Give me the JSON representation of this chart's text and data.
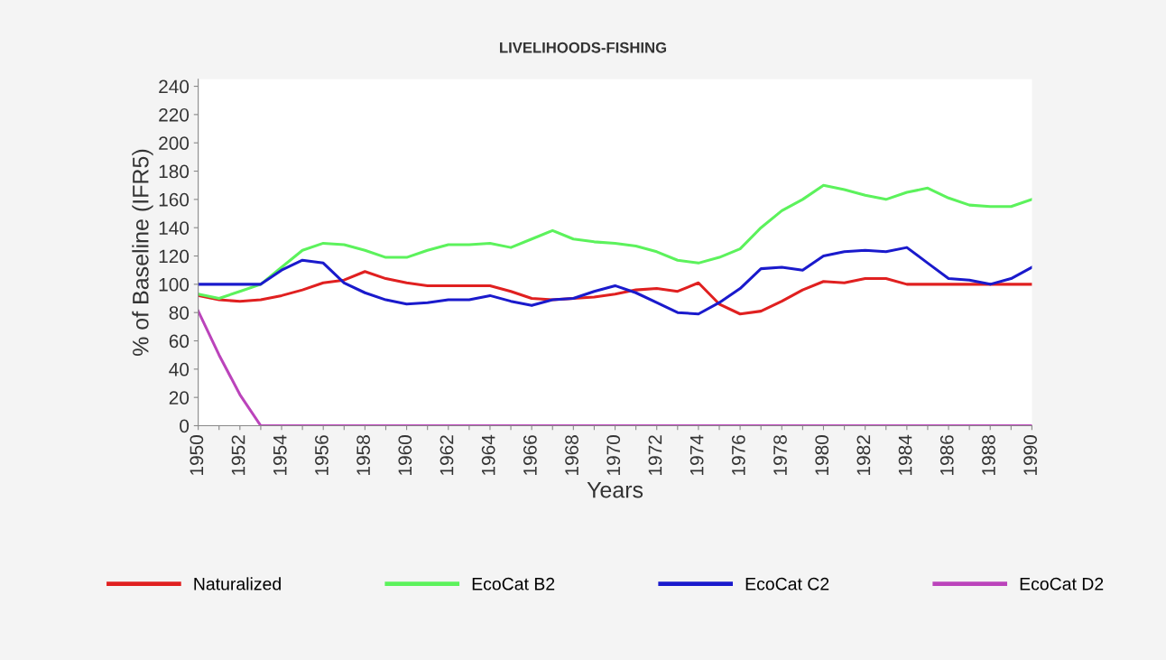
{
  "chart_data": {
    "type": "line",
    "title": "LIVELIHOODS-FISHING",
    "xlabel": "Years",
    "ylabel": "% of Baseline (IFR5)",
    "x": [
      1950,
      1951,
      1952,
      1953,
      1954,
      1955,
      1956,
      1957,
      1958,
      1959,
      1960,
      1961,
      1962,
      1963,
      1964,
      1965,
      1966,
      1967,
      1968,
      1969,
      1970,
      1971,
      1972,
      1973,
      1974,
      1975,
      1976,
      1977,
      1978,
      1979,
      1980,
      1981,
      1982,
      1983,
      1984,
      1985,
      1986,
      1987,
      1988,
      1989,
      1990
    ],
    "series": [
      {
        "name": "Naturalized",
        "color": "#e02020",
        "values": [
          92,
          89,
          88,
          89,
          92,
          96,
          101,
          103,
          109,
          104,
          101,
          99,
          99,
          99,
          99,
          95,
          90,
          89,
          90,
          91,
          93,
          96,
          97,
          95,
          101,
          86,
          79,
          81,
          88,
          96,
          102,
          101,
          104,
          104,
          100,
          100,
          100,
          100,
          100,
          100,
          100
        ]
      },
      {
        "name": "EcoCat B2",
        "color": "#5cf25c",
        "values": [
          93,
          90,
          95,
          100,
          112,
          124,
          129,
          128,
          124,
          119,
          119,
          124,
          128,
          128,
          129,
          126,
          132,
          138,
          132,
          130,
          129,
          127,
          123,
          117,
          115,
          119,
          125,
          140,
          152,
          160,
          170,
          167,
          163,
          160,
          165,
          168,
          161,
          156,
          155,
          155,
          160
        ]
      },
      {
        "name": "EcoCat C2",
        "color": "#1a1acc",
        "values": [
          100,
          100,
          100,
          100,
          110,
          117,
          115,
          101,
          94,
          89,
          86,
          87,
          89,
          89,
          92,
          88,
          85,
          89,
          90,
          95,
          99,
          94,
          87,
          80,
          79,
          87,
          97,
          111,
          112,
          110,
          120,
          123,
          124,
          123,
          126,
          115,
          104,
          103,
          100,
          104,
          112
        ]
      },
      {
        "name": "EcoCat D2",
        "color": "#bb44bb",
        "values": [
          81,
          50,
          22,
          0,
          0,
          0,
          0,
          0,
          0,
          0,
          0,
          0,
          0,
          0,
          0,
          0,
          0,
          0,
          0,
          0,
          0,
          0,
          0,
          0,
          0,
          0,
          0,
          0,
          0,
          0,
          0,
          0,
          0,
          0,
          0,
          0,
          0,
          0,
          0,
          0,
          0
        ]
      }
    ],
    "xlim": [
      1950,
      1990
    ],
    "xticks": [
      1950,
      {
        "value": 1951,
        "label": null
      },
      1952,
      {
        "value": 1953,
        "label": null
      },
      1954,
      {
        "value": 1955,
        "label": null
      },
      1956,
      {
        "value": 1957,
        "label": null
      },
      1958,
      {
        "value": 1959,
        "label": null
      },
      1960,
      {
        "value": 1961,
        "label": null
      },
      1962,
      {
        "value": 1963,
        "label": null
      },
      1964,
      {
        "value": 1965,
        "label": null
      },
      1966,
      {
        "value": 1967,
        "label": null
      },
      1968,
      {
        "value": 1969,
        "label": null
      },
      1970,
      {
        "value": 1971,
        "label": null
      },
      1972,
      {
        "value": 1973,
        "label": null
      },
      1974,
      {
        "value": 1975,
        "label": null
      },
      1976,
      {
        "value": 1977,
        "label": null
      },
      1978,
      {
        "value": 1979,
        "label": null
      },
      1980,
      {
        "value": 1981,
        "label": null
      },
      1982,
      {
        "value": 1983,
        "label": null
      },
      1984,
      {
        "value": 1985,
        "label": null
      },
      1986,
      {
        "value": 1987,
        "label": null
      },
      1988,
      {
        "value": 1989,
        "label": null
      },
      1990
    ],
    "ylim": [
      0,
      245
    ],
    "yticks": [
      0,
      20,
      40,
      60,
      80,
      100,
      120,
      140,
      160,
      180,
      200,
      220,
      240
    ],
    "grid": false,
    "legend": "bottom",
    "marker": "none",
    "line_style": "solid"
  }
}
